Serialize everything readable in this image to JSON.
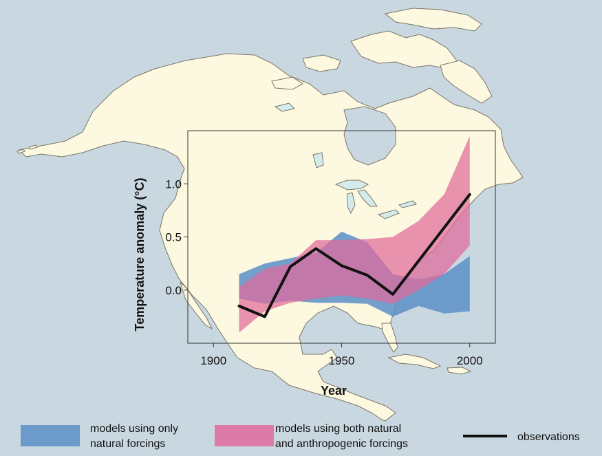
{
  "chart_data": {
    "type": "area",
    "xlabel": "Year",
    "ylabel": "Temperature anomaly (°C)",
    "xlim": [
      1890,
      2010
    ],
    "ylim": [
      -0.5,
      1.5
    ],
    "x_ticks": [
      1900,
      1950,
      2000
    ],
    "y_ticks": [
      0.0,
      0.5,
      1.0
    ],
    "x_tick_labels": [
      "1900",
      "1950",
      "2000"
    ],
    "y_tick_labels": [
      "0.0",
      "0.5",
      "1.0"
    ],
    "grid": false,
    "background": "map of North America",
    "legend_position": "bottom",
    "series": [
      {
        "name": "models using only natural forcings",
        "kind": "band",
        "color": "#5b8fc7",
        "x": [
          1910,
          1920,
          1930,
          1940,
          1950,
          1960,
          1970,
          1980,
          1990,
          2000
        ],
        "lower": [
          -0.08,
          -0.13,
          -0.1,
          -0.12,
          -0.12,
          -0.13,
          -0.25,
          -0.15,
          -0.22,
          -0.2
        ],
        "upper": [
          0.15,
          0.25,
          0.3,
          0.35,
          0.55,
          0.45,
          0.15,
          0.1,
          0.15,
          0.32
        ]
      },
      {
        "name": "models using both natural and anthropogenic forcings",
        "kind": "band",
        "color": "#e06a9a",
        "x": [
          1910,
          1920,
          1930,
          1940,
          1950,
          1960,
          1970,
          1980,
          1990,
          2000
        ],
        "lower": [
          -0.4,
          -0.2,
          -0.12,
          -0.08,
          -0.05,
          -0.08,
          -0.13,
          0.0,
          0.15,
          0.42
        ],
        "upper": [
          0.03,
          0.2,
          0.25,
          0.47,
          0.47,
          0.48,
          0.5,
          0.65,
          0.9,
          1.45
        ]
      },
      {
        "name": "observations",
        "kind": "line",
        "color": "#111111",
        "x": [
          1910,
          1920,
          1930,
          1940,
          1950,
          1960,
          1970,
          2000
        ],
        "y": [
          -0.15,
          -0.25,
          0.22,
          0.39,
          0.23,
          0.14,
          -0.04,
          0.9
        ]
      }
    ],
    "legend": [
      {
        "lines": [
          "models using only",
          "natural forcings"
        ],
        "color": "#5b8fc7",
        "kind": "patch"
      },
      {
        "lines": [
          "models using both natural",
          "and anthropogenic forcings"
        ],
        "color": "#e06a9a",
        "kind": "patch"
      },
      {
        "lines": [
          "observations"
        ],
        "color": "#111111",
        "kind": "line"
      }
    ]
  },
  "colors": {
    "ocean": "#c9d7e1",
    "land": "#fdf9e0",
    "coast": "#7a7466",
    "lake": "#d4ebeb"
  }
}
